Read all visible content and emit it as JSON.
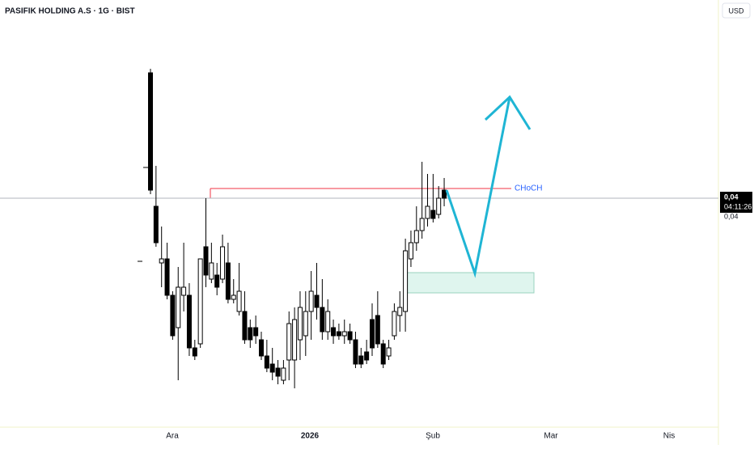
{
  "chart_data": {
    "type": "candlestick",
    "title": "PASIFIK HOLDING A.S · 1G · BIST",
    "currency": "USD",
    "annotation": "CHoCH",
    "last_price_label": "0,04",
    "countdown": "04:11:26",
    "price_label_2": "0,04",
    "x_axis_labels": [
      "Ara",
      "2026",
      "Şub",
      "Mar",
      "Nis"
    ],
    "ylim": [
      0.0345,
      0.0449
    ],
    "up_color": "#ffffff",
    "down_color": "#000000",
    "open": [
      0.0431,
      0.0398,
      0.0384,
      0.0385,
      0.0376,
      0.0368,
      0.0376,
      0.0376,
      0.0363,
      0.0364,
      0.0388,
      0.038,
      0.0381,
      0.038,
      0.0384,
      0.0375,
      0.0372,
      0.0372,
      0.0368,
      0.0368,
      0.0365,
      0.0361,
      0.0359,
      0.0358,
      0.0355,
      0.036,
      0.036,
      0.0365,
      0.0366,
      0.0372,
      0.0376,
      0.0373,
      0.0367,
      0.0368,
      0.0367,
      0.0366,
      0.0367,
      0.0365,
      0.0361,
      0.0362,
      0.037,
      0.0371,
      0.0364,
      0.0361,
      0.0366,
      0.0371,
      0.0372,
      0.0385,
      0.0389,
      0.0392,
      0.0395,
      0.0397,
      0.0396,
      0.0402
    ],
    "high": [
      0.0432,
      0.0408,
      0.0393,
      0.0389,
      0.0377,
      0.0383,
      0.0389,
      0.0379,
      0.0365,
      0.0385,
      0.04,
      0.0389,
      0.0384,
      0.0391,
      0.0389,
      0.038,
      0.0384,
      0.0377,
      0.037,
      0.0371,
      0.0367,
      0.0365,
      0.0363,
      0.036,
      0.036,
      0.0372,
      0.0373,
      0.0377,
      0.0377,
      0.0382,
      0.0384,
      0.038,
      0.0375,
      0.037,
      0.0369,
      0.037,
      0.0369,
      0.0367,
      0.0363,
      0.0365,
      0.0374,
      0.0377,
      0.0365,
      0.0365,
      0.0374,
      0.0377,
      0.039,
      0.0392,
      0.0398,
      0.0409,
      0.0406,
      0.0406,
      0.0403,
      0.0405
    ],
    "low": [
      0.0401,
      0.0388,
      0.0378,
      0.0375,
      0.0365,
      0.0355,
      0.0372,
      0.0361,
      0.036,
      0.0363,
      0.0378,
      0.0379,
      0.0376,
      0.0379,
      0.0374,
      0.0374,
      0.0371,
      0.0364,
      0.0363,
      0.0364,
      0.036,
      0.0357,
      0.0355,
      0.0354,
      0.0354,
      0.0355,
      0.0353,
      0.036,
      0.0361,
      0.0365,
      0.037,
      0.0365,
      0.0365,
      0.0364,
      0.0365,
      0.0364,
      0.0364,
      0.0358,
      0.0358,
      0.0359,
      0.0361,
      0.0363,
      0.0358,
      0.036,
      0.0365,
      0.0367,
      0.0367,
      0.0383,
      0.0387,
      0.039,
      0.0393,
      0.0394,
      0.0395,
      0.0398
    ],
    "close": [
      0.0402,
      0.0389,
      0.0385,
      0.0376,
      0.0366,
      0.0378,
      0.0378,
      0.0363,
      0.0361,
      0.0385,
      0.0381,
      0.0384,
      0.0378,
      0.0388,
      0.0375,
      0.0376,
      0.0377,
      0.0365,
      0.0365,
      0.0366,
      0.0361,
      0.0358,
      0.0357,
      0.0356,
      0.0358,
      0.0369,
      0.037,
      0.0373,
      0.0372,
      0.0377,
      0.0373,
      0.0367,
      0.0372,
      0.0366,
      0.0366,
      0.0367,
      0.0365,
      0.0359,
      0.0359,
      0.036,
      0.0363,
      0.0364,
      0.0359,
      0.0363,
      0.0372,
      0.0373,
      0.0387,
      0.0389,
      0.0392,
      0.0395,
      0.0398,
      0.0395,
      0.04,
      0.04
    ]
  }
}
